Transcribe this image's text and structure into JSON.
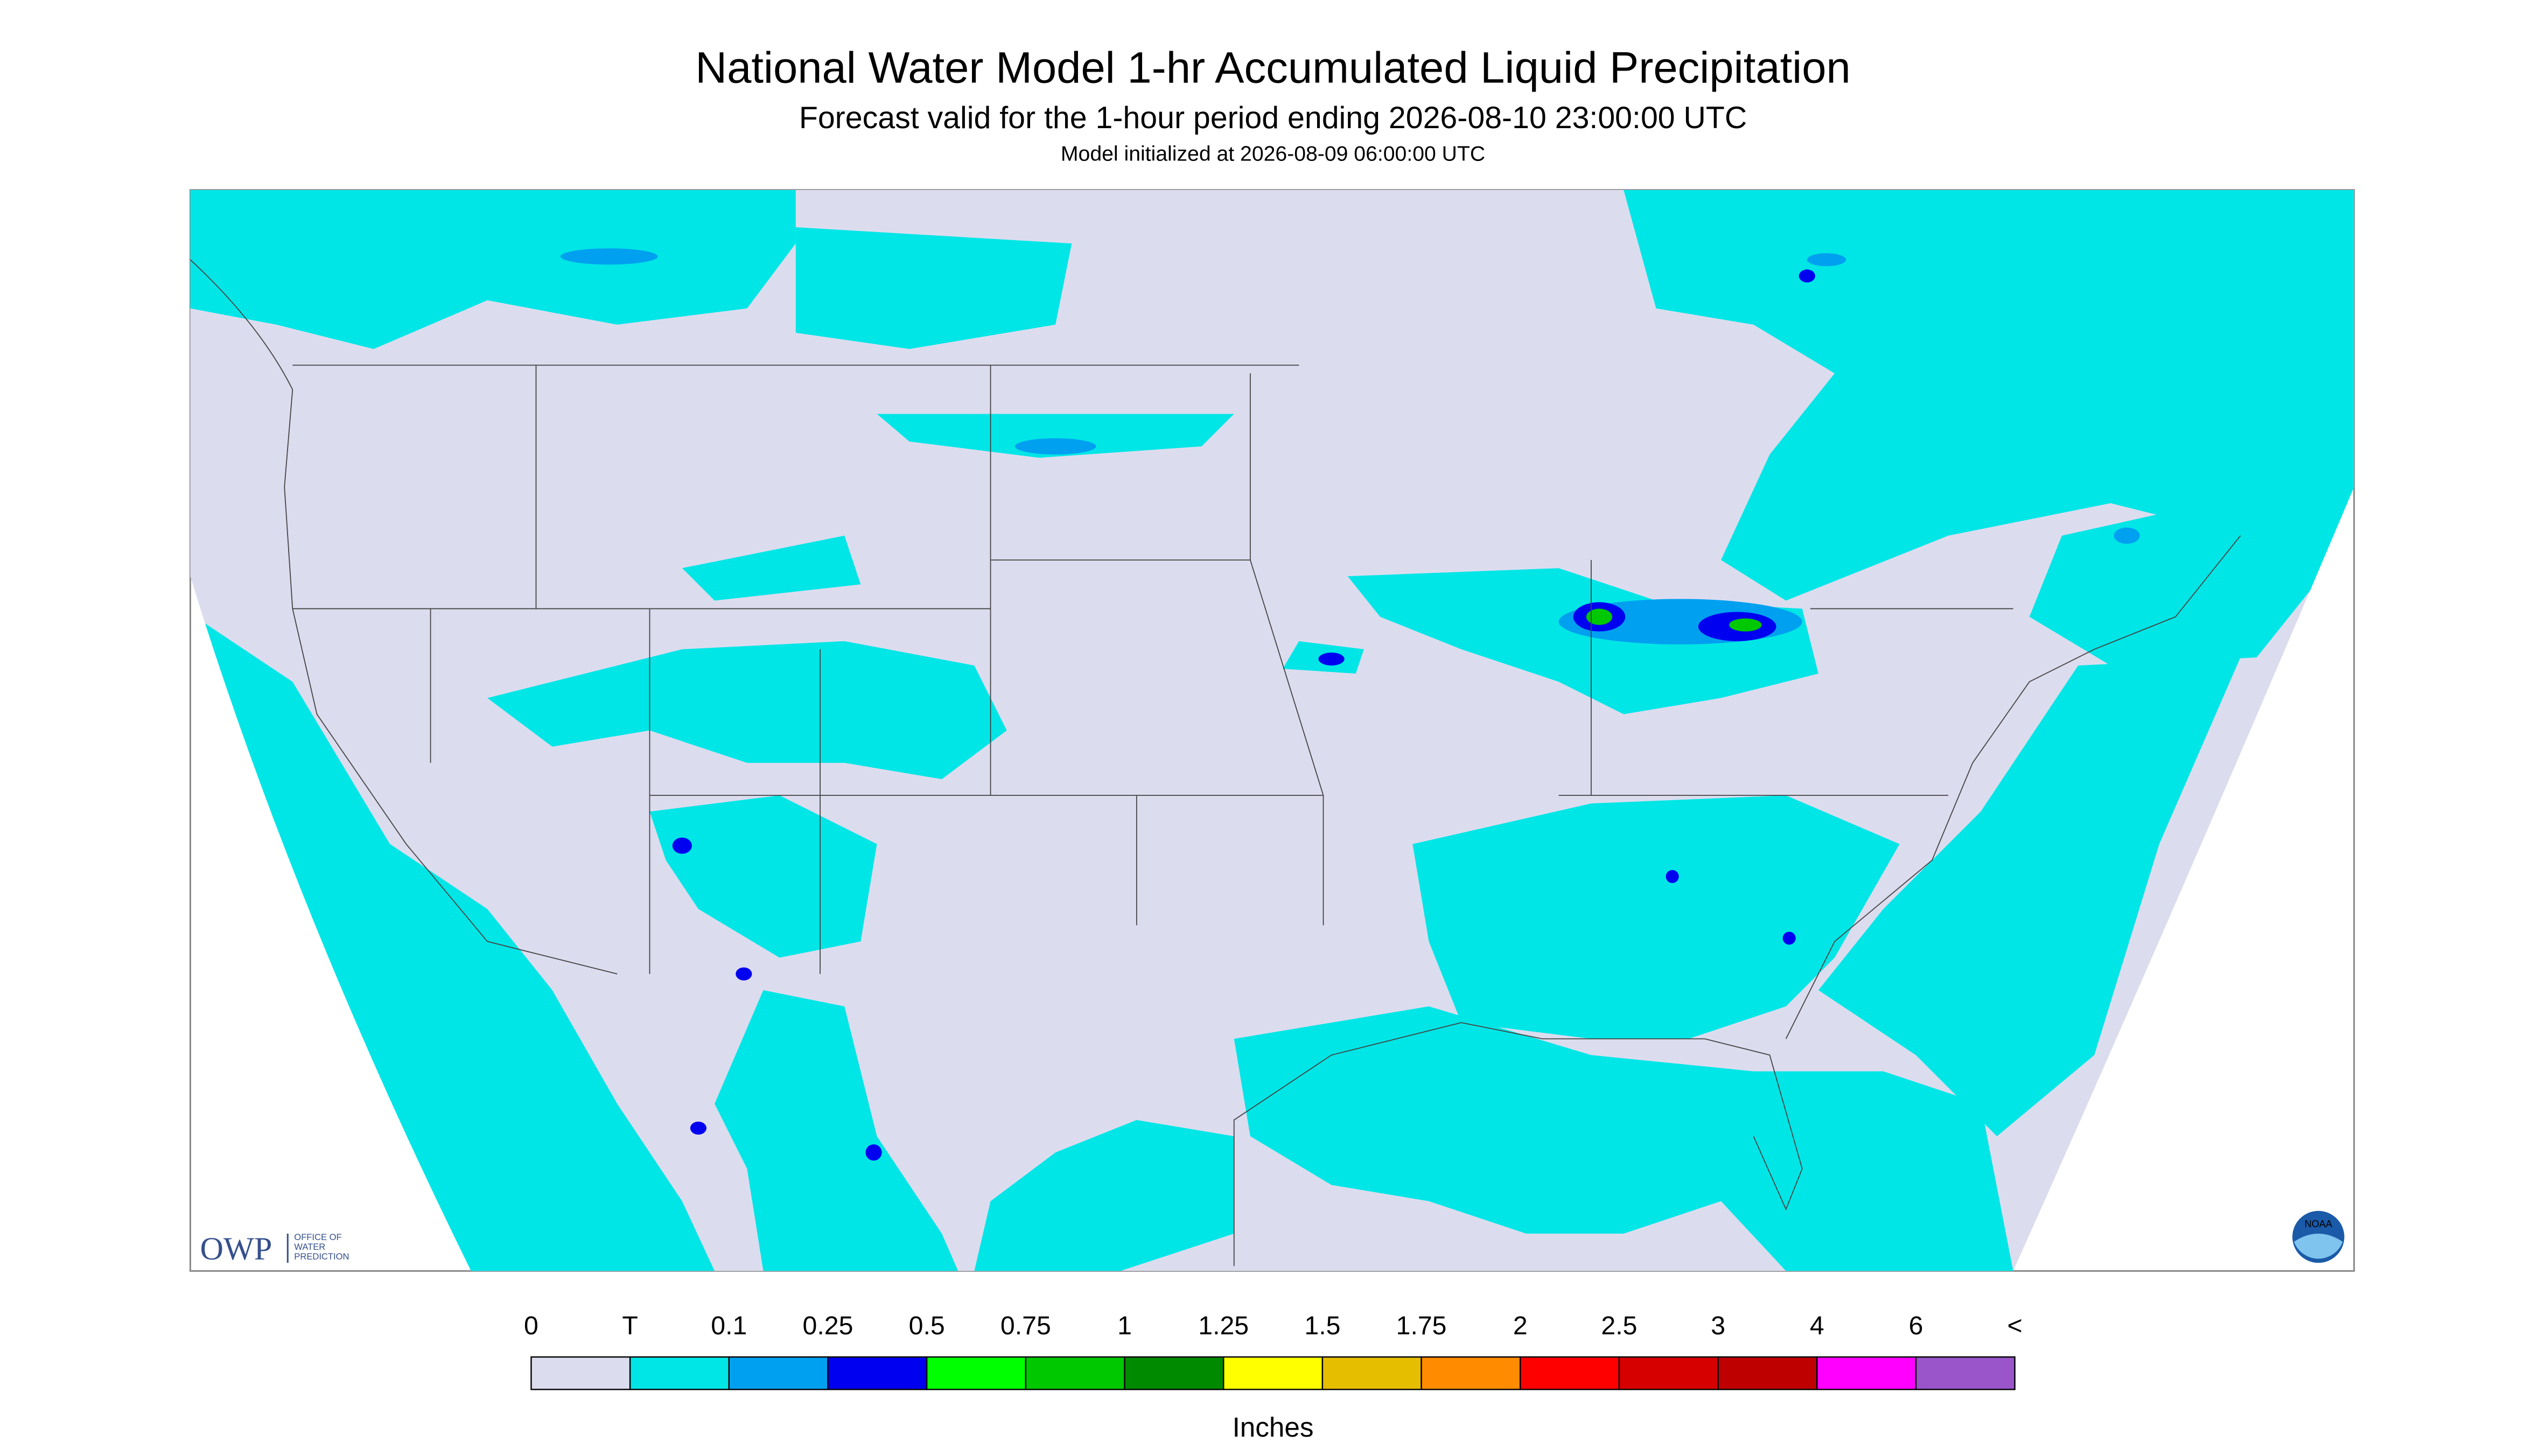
{
  "header": {
    "title": "National Water Model 1-hr Accumulated Liquid Precipitation",
    "subtitle": "Forecast valid for the 1-hour period ending 2026-08-10 23:00:00 UTC",
    "note": "Model initialized at 2026-08-09 06:00:00 UTC"
  },
  "legend": {
    "labels": [
      "0",
      "T",
      "0.1",
      "0.25",
      "0.5",
      "0.75",
      "1",
      "1.25",
      "1.5",
      "1.75",
      "2",
      "2.5",
      "3",
      "4",
      "6",
      "<"
    ],
    "colors": [
      "#dcdcef",
      "#00e6e6",
      "#00a0f0",
      "#0000f0",
      "#00ff00",
      "#00c800",
      "#008a00",
      "#ffff00",
      "#e6be00",
      "#ff8c00",
      "#ff0000",
      "#d60000",
      "#bf0000",
      "#ff00ff",
      "#9955c9"
    ],
    "unit": "Inches"
  },
  "logos": {
    "owp": "OWP",
    "owp_sub": [
      "OFFICE OF",
      "WATER",
      "PREDICTION"
    ],
    "noaa": "NOAA"
  }
}
